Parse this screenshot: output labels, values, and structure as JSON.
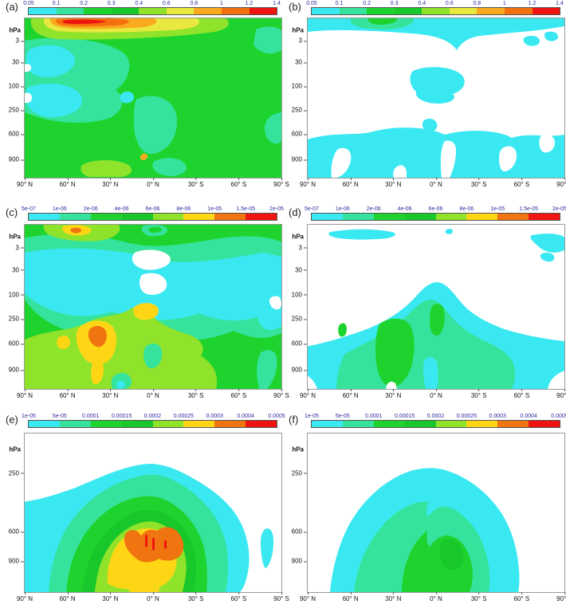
{
  "panels": [
    {
      "letter": "(a)"
    },
    {
      "letter": "(b)"
    },
    {
      "letter": "(c)"
    },
    {
      "letter": "(d)"
    },
    {
      "letter": "(e)"
    },
    {
      "letter": "(f)"
    }
  ],
  "axes": {
    "y_label": "hPa",
    "y_ticks_full": [
      "3",
      "30",
      "100",
      "250",
      "600",
      "900"
    ],
    "y_ticks_lower": [
      "250",
      "600",
      "900"
    ],
    "x_ticks": [
      "90° N",
      "60° N",
      "30° N",
      "0° N",
      "30° S",
      "60° S",
      "90° S"
    ]
  },
  "colorbars": {
    "flux": {
      "labels": [
        "0.05",
        "0.1",
        "0.2",
        "0.3",
        "0.4",
        "0.6",
        "0.8",
        "1",
        "1.2",
        "1.4"
      ],
      "colors": [
        "#3ae8f2",
        "#35e39c",
        "#1fd32f",
        "#18c729",
        "#8fe32a",
        "#e8e83e",
        "#fbaa1f",
        "#f3700e",
        "#ee1511"
      ]
    },
    "mid": {
      "labels": [
        "5e-07",
        "1e-06",
        "2e-06",
        "4e-06",
        "6e-06",
        "8e-06",
        "1e-05",
        "1.5e-05",
        "2e-05"
      ],
      "colors": [
        "#3ae8f2",
        "#35e39c",
        "#1fd32f",
        "#18c729",
        "#8fe32a",
        "#fed616",
        "#f0740f",
        "#ee1511"
      ]
    },
    "low": {
      "labels": [
        "1e-05",
        "5e-05",
        "0.0001",
        "0.00015",
        "0.0002",
        "0.00025",
        "0.0003",
        "0.0004",
        "0.0005"
      ],
      "colors": [
        "#3ae8f2",
        "#35e39c",
        "#1fd32f",
        "#18c729",
        "#8fe32a",
        "#fed616",
        "#f0740f",
        "#ee1511"
      ]
    }
  },
  "chart_data": [
    {
      "panel": "(a)",
      "type": "contour",
      "x_ticks": [
        "90° N",
        "60° N",
        "30° N",
        "0° N",
        "30° S",
        "60° S",
        "90° S"
      ],
      "y_unit": "hPa",
      "y_ticks": [
        3,
        30,
        100,
        250,
        600,
        900
      ],
      "levels": [
        0.05,
        0.1,
        0.2,
        0.3,
        0.4,
        0.6,
        0.8,
        1,
        1.2,
        1.4
      ],
      "summary": "Field mostly 0.2-0.4; elongated maximum exceeding 1.4 near 50-65 N at 1-2 hPa inside a 0.6-1.2 band along the top; pockets below 0.2 (cyan) near 60-90 N between 30 and 250 hPa; small 0.4-0.8 patches near 30 N below 900 hPa."
    },
    {
      "panel": "(b)",
      "type": "contour",
      "x_ticks": [
        "90° N",
        "60° N",
        "30° N",
        "0° N",
        "30° S",
        "60° S",
        "90° S"
      ],
      "y_unit": "hPa",
      "y_ticks": [
        3,
        30,
        100,
        250,
        600,
        900
      ],
      "levels": [
        0.05,
        0.1,
        0.2,
        0.3,
        0.4,
        0.6,
        0.8,
        1,
        1.2,
        1.4
      ],
      "summary": "Mostly below 0.05 (blank); 0.05-0.1 layer near 1-3 hPa with a 0.1-0.3 maximum near 30-45 N; isolated 0.05-0.1 patch near the equator at 100 hPa; scattered 0.05-0.1 patches below 600 hPa."
    },
    {
      "panel": "(c)",
      "type": "contour",
      "x_ticks": [
        "90° N",
        "60° N",
        "30° N",
        "0° N",
        "30° S",
        "60° S",
        "90° S"
      ],
      "y_unit": "hPa",
      "y_ticks": [
        3,
        30,
        100,
        250,
        600,
        900
      ],
      "levels": [
        5e-07,
        1e-06,
        2e-06,
        4e-06,
        6e-06,
        8e-06,
        1e-05,
        1.5e-05,
        2e-05
      ],
      "summary": "Background 2e-06 to 4e-06; band below 1e-06 (cyan) from 30-250 hPa with blank holes near the equator; maximum 1.5e-05 to 2e-05 near 40 N around 400-500 hPa inside a broad 8e-06 to 1e-05 ridge; secondary 8e-06 to 1e-05 spot near 10 N at 200 hPa; small yellow-orange maximum near 60-70 N at 1-2 hPa."
    },
    {
      "panel": "(d)",
      "type": "contour",
      "x_ticks": [
        "90° N",
        "60° N",
        "30° N",
        "0° N",
        "30° S",
        "60° S",
        "90° S"
      ],
      "y_unit": "hPa",
      "y_ticks": [
        3,
        30,
        100,
        250,
        600,
        900
      ],
      "levels": [
        5e-07,
        1e-06,
        2e-06,
        4e-06,
        6e-06,
        8e-06,
        1e-05,
        1.5e-05,
        2e-05
      ],
      "summary": "Blank (below 5e-07) above 100 hPa except thin cyan streaks near 1-2 hPa; dome of 5e-07 to 2e-06 filling 100-1000 hPa peaking near the equator; 2e-06 to 4e-06 cores near 30-45 N (300-1000 hPa) and near 5 N (250-400 hPa)."
    },
    {
      "panel": "(e)",
      "type": "contour",
      "x_ticks": [
        "90° N",
        "60° N",
        "30° N",
        "0° N",
        "30° S",
        "60° S",
        "90° S"
      ],
      "y_unit": "hPa",
      "y_ticks": [
        250,
        600,
        900
      ],
      "levels": [
        1e-05,
        5e-05,
        0.0001,
        0.00015,
        0.0002,
        0.00025,
        0.0003,
        0.0004,
        0.0005
      ],
      "summary": "Blank (below 1e-05) above about 200 hPa and poleward of about 70 degrees; concentric dome centred near the equator; maximum 0.0004-0.0005 with small flecks above 0.0005 between 10 N and 30 S around 700-850 hPa."
    },
    {
      "panel": "(f)",
      "type": "contour",
      "x_ticks": [
        "90° N",
        "60° N",
        "30° N",
        "0° N",
        "30° S",
        "60° S",
        "90° S"
      ],
      "y_unit": "hPa",
      "y_ticks": [
        250,
        600,
        900
      ],
      "levels": [
        1e-05,
        5e-05,
        0.0001,
        0.00015,
        0.0002,
        0.00025,
        0.0003,
        0.0004,
        0.0005
      ],
      "summary": "Dome of 1e-05 to 5e-05 below about 250 hPa between 50 N and 60 S; 5e-05 to 0.0001 interior; 0.0001 to 0.00015 core near 0-25 S at 650-950 hPa."
    }
  ]
}
